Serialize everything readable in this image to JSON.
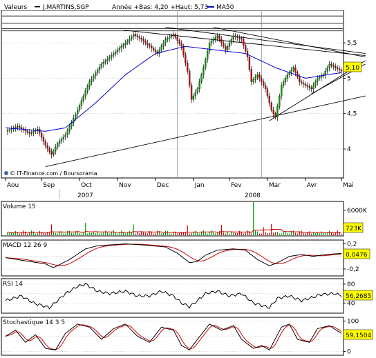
{
  "header": {
    "label": "Valeurs",
    "ticker": "J.MARTINS,SGP",
    "range_text": "Année +Bas: 4,20 +Haut: 5,73",
    "ma_label": "MA50"
  },
  "watermark": "© IT-Finance.com / Boursorama",
  "colors": {
    "up": "#00a000",
    "down": "#d00000",
    "ma": "#0000cc",
    "value_box": "#ffff00",
    "macd_signal": "#cc0000",
    "grid": "#c0c0c0"
  },
  "chart_data": [
    {
      "id": "price",
      "type": "candlestick",
      "ylim": [
        3.6,
        5.95
      ],
      "y_ticks": [
        4,
        4.5,
        5,
        5.5
      ],
      "y_tick_labels": [
        "4",
        "4,5",
        "5",
        "5,5"
      ],
      "last_value": "5,10",
      "months": [
        "Aou",
        "Sep",
        "Oct",
        "Nov",
        "Dec",
        "Jan",
        "Fev",
        "Mar",
        "Avr",
        "Mai"
      ],
      "years": [
        "2007",
        "2008"
      ],
      "anchors": [
        [
          0,
          4.25
        ],
        [
          6,
          4.32
        ],
        [
          12,
          4.22
        ],
        [
          16,
          4.28
        ],
        [
          20,
          4.05
        ],
        [
          23,
          3.92
        ],
        [
          26,
          4.08
        ],
        [
          30,
          4.2
        ],
        [
          36,
          4.55
        ],
        [
          42,
          4.95
        ],
        [
          48,
          5.2
        ],
        [
          54,
          5.35
        ],
        [
          60,
          5.5
        ],
        [
          64,
          5.62
        ],
        [
          68,
          5.55
        ],
        [
          72,
          5.45
        ],
        [
          76,
          5.35
        ],
        [
          80,
          5.55
        ],
        [
          84,
          5.62
        ],
        [
          88,
          5.45
        ],
        [
          91,
          5.1
        ],
        [
          93,
          4.7
        ],
        [
          96,
          4.85
        ],
        [
          99,
          5.15
        ],
        [
          102,
          5.5
        ],
        [
          106,
          5.6
        ],
        [
          110,
          5.4
        ],
        [
          114,
          5.6
        ],
        [
          118,
          5.55
        ],
        [
          121,
          5.3
        ],
        [
          123,
          4.95
        ],
        [
          126,
          5.05
        ],
        [
          130,
          4.85
        ],
        [
          133,
          4.55
        ],
        [
          135,
          4.45
        ],
        [
          138,
          4.9
        ],
        [
          141,
          5.05
        ],
        [
          144,
          5.15
        ],
        [
          147,
          4.95
        ],
        [
          150,
          4.9
        ],
        [
          153,
          4.85
        ],
        [
          156,
          5.0
        ],
        [
          159,
          5.05
        ],
        [
          162,
          5.2
        ],
        [
          165,
          5.15
        ],
        [
          168,
          5.1
        ]
      ],
      "ma50_anchors": [
        [
          0,
          4.3
        ],
        [
          20,
          4.25
        ],
        [
          30,
          4.3
        ],
        [
          45,
          4.65
        ],
        [
          60,
          5.05
        ],
        [
          75,
          5.35
        ],
        [
          90,
          5.45
        ],
        [
          105,
          5.4
        ],
        [
          120,
          5.35
        ],
        [
          135,
          5.15
        ],
        [
          150,
          5.0
        ],
        [
          168,
          5.08
        ]
      ],
      "trendlines": [
        {
          "from": [
            20,
            3.75
          ],
          "to": [
            180,
            4.75
          ]
        },
        {
          "from": [
            59,
            5.68
          ],
          "to": [
            180,
            5.32
          ]
        },
        {
          "from": [
            80,
            5.72
          ],
          "to": [
            180,
            5.35
          ]
        },
        {
          "from": [
            104,
            5.72
          ],
          "to": [
            180,
            5.3
          ]
        },
        {
          "from": [
            132,
            4.4
          ],
          "to": [
            180,
            5.25
          ]
        },
        {
          "from": [
            153,
            4.78
          ],
          "to": [
            180,
            5.2
          ]
        }
      ],
      "hlines": [
        5.67,
        5.7,
        5.78,
        5.88
      ],
      "vlines": [
        86,
        128
      ]
    },
    {
      "id": "volume",
      "type": "bar",
      "label": "Volume 15",
      "y_ticks": [
        6000
      ],
      "y_tick_labels": [
        "6000K"
      ],
      "ylim": [
        0,
        8000
      ],
      "last_value": "723K",
      "base": 900,
      "spikes": [
        [
          23,
          2600
        ],
        [
          40,
          3000
        ],
        [
          64,
          2600
        ],
        [
          91,
          2400
        ],
        [
          108,
          2500
        ],
        [
          124,
          8200
        ],
        [
          129,
          1900
        ],
        [
          133,
          2700
        ]
      ]
    },
    {
      "id": "macd",
      "type": "line",
      "label": "MACD 12 26 9",
      "ylim": [
        -0.3,
        0.25
      ],
      "y_ticks": [
        0.2,
        -0.2
      ],
      "y_tick_labels": [
        "0,2",
        "-0,2"
      ],
      "last_value": "0,0476",
      "anchors": [
        [
          0,
          -0.02
        ],
        [
          20,
          -0.12
        ],
        [
          24,
          -0.18
        ],
        [
          32,
          -0.05
        ],
        [
          40,
          0.12
        ],
        [
          46,
          0.17
        ],
        [
          60,
          0.2
        ],
        [
          70,
          0.18
        ],
        [
          80,
          0.15
        ],
        [
          86,
          0.05
        ],
        [
          92,
          -0.1
        ],
        [
          96,
          -0.08
        ],
        [
          100,
          0.02
        ],
        [
          106,
          0.1
        ],
        [
          114,
          0.12
        ],
        [
          120,
          0.1
        ],
        [
          126,
          -0.05
        ],
        [
          132,
          -0.15
        ],
        [
          136,
          -0.1
        ],
        [
          142,
          0.0
        ],
        [
          148,
          0.03
        ],
        [
          154,
          0.0
        ],
        [
          160,
          0.03
        ],
        [
          168,
          0.047
        ]
      ]
    },
    {
      "id": "rsi",
      "type": "line",
      "label": "RSI 14",
      "ylim": [
        20,
        90
      ],
      "y_ticks": [
        80,
        60,
        40
      ],
      "y_tick_labels": [
        "80",
        "60",
        "40"
      ],
      "last_value": "56,2685",
      "anchors": [
        [
          0,
          45
        ],
        [
          8,
          55
        ],
        [
          14,
          40
        ],
        [
          22,
          30
        ],
        [
          30,
          60
        ],
        [
          36,
          75
        ],
        [
          40,
          80
        ],
        [
          46,
          65
        ],
        [
          52,
          60
        ],
        [
          60,
          65
        ],
        [
          66,
          55
        ],
        [
          72,
          55
        ],
        [
          78,
          65
        ],
        [
          84,
          55
        ],
        [
          88,
          40
        ],
        [
          92,
          32
        ],
        [
          96,
          45
        ],
        [
          100,
          60
        ],
        [
          106,
          65
        ],
        [
          112,
          55
        ],
        [
          118,
          60
        ],
        [
          124,
          40
        ],
        [
          128,
          35
        ],
        [
          132,
          30
        ],
        [
          136,
          50
        ],
        [
          142,
          55
        ],
        [
          148,
          45
        ],
        [
          152,
          50
        ],
        [
          158,
          58
        ],
        [
          164,
          60
        ],
        [
          168,
          56.3
        ]
      ]
    },
    {
      "id": "stoch",
      "type": "line",
      "label": "Stochastique 14 3 5",
      "ylim": [
        -10,
        110
      ],
      "y_ticks": [
        100,
        0
      ],
      "y_tick_labels": [
        "100",
        "0"
      ],
      "last_value": "59,1504",
      "anchors": [
        [
          0,
          50
        ],
        [
          5,
          70
        ],
        [
          10,
          30
        ],
        [
          15,
          55
        ],
        [
          20,
          10
        ],
        [
          25,
          5
        ],
        [
          30,
          60
        ],
        [
          36,
          90
        ],
        [
          42,
          80
        ],
        [
          48,
          40
        ],
        [
          54,
          75
        ],
        [
          60,
          90
        ],
        [
          66,
          50
        ],
        [
          72,
          30
        ],
        [
          78,
          80
        ],
        [
          84,
          70
        ],
        [
          88,
          20
        ],
        [
          92,
          5
        ],
        [
          96,
          40
        ],
        [
          102,
          90
        ],
        [
          108,
          70
        ],
        [
          114,
          85
        ],
        [
          118,
          40
        ],
        [
          124,
          10
        ],
        [
          128,
          20
        ],
        [
          132,
          5
        ],
        [
          138,
          80
        ],
        [
          142,
          90
        ],
        [
          146,
          40
        ],
        [
          152,
          30
        ],
        [
          156,
          75
        ],
        [
          162,
          85
        ],
        [
          168,
          59
        ]
      ]
    }
  ]
}
